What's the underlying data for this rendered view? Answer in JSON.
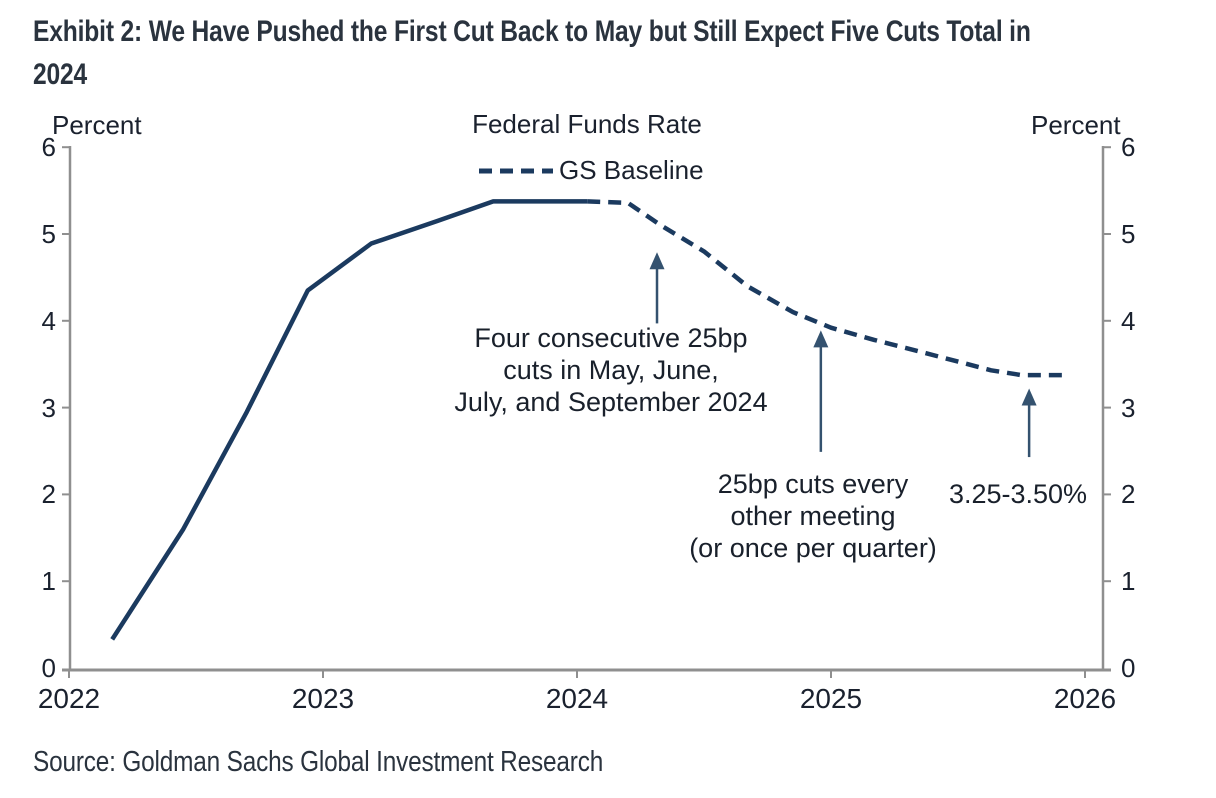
{
  "exhibit": {
    "title_line1": "Exhibit 2: We Have Pushed the First Cut Back to May but Still Expect Five Cuts Total in",
    "title_line2": "2024",
    "source": "Source: Goldman Sachs Global Investment Research"
  },
  "colors": {
    "series_line": "#1b3a5f",
    "arrow": "#34526f",
    "axis": "#8f8f8f",
    "chart_text": "#1a212e",
    "heading_text": "#2a333e"
  },
  "chart_data": {
    "type": "line",
    "title": "Federal Funds Rate",
    "y_axis_label_left": "Percent",
    "y_axis_label_right": "Percent",
    "xlim": [
      2022,
      2026.07
    ],
    "ylim": [
      0,
      6
    ],
    "x_ticks": [
      2022,
      2023,
      2024,
      2025,
      2026
    ],
    "y_ticks": [
      0,
      1,
      2,
      3,
      4,
      5,
      6
    ],
    "grid": false,
    "legend": [
      {
        "name": "GS Baseline",
        "style": "dashed"
      }
    ],
    "series": [
      {
        "name": "Federal Funds Rate (actual)",
        "style": "solid",
        "color": "#1b3a5f",
        "points": [
          [
            2022.17,
            0.33
          ],
          [
            2022.45,
            1.6
          ],
          [
            2022.7,
            2.95
          ],
          [
            2022.94,
            4.35
          ],
          [
            2023.19,
            4.89
          ],
          [
            2023.45,
            5.15
          ],
          [
            2023.67,
            5.375
          ],
          [
            2024.04,
            5.375
          ]
        ]
      },
      {
        "name": "GS Baseline",
        "style": "dashed",
        "color": "#1b3a5f",
        "points": [
          [
            2024.04,
            5.375
          ],
          [
            2024.2,
            5.36
          ],
          [
            2024.33,
            5.1
          ],
          [
            2024.5,
            4.8
          ],
          [
            2024.67,
            4.4
          ],
          [
            2024.85,
            4.1
          ],
          [
            2025.0,
            3.92
          ],
          [
            2025.17,
            3.78
          ],
          [
            2025.33,
            3.66
          ],
          [
            2025.5,
            3.53
          ],
          [
            2025.63,
            3.43
          ],
          [
            2025.75,
            3.375
          ],
          [
            2025.92,
            3.375
          ]
        ]
      }
    ],
    "annotations": [
      {
        "lines": [
          "Four consecutive 25bp",
          "cuts in May, June,",
          "July, and September 2024"
        ],
        "arrow": {
          "x": 2024.315,
          "tip_pct": 4.79,
          "base_pct": 3.97
        }
      },
      {
        "lines": [
          "25bp cuts every",
          "other meeting",
          "(or once per quarter)"
        ],
        "arrow": {
          "x": 2024.96,
          "tip_pct": 3.89,
          "base_pct": 2.49
        }
      },
      {
        "lines": [
          "3.25-3.50%"
        ],
        "arrow": {
          "x": 2025.78,
          "tip_pct": 3.22,
          "base_pct": 2.43
        }
      }
    ]
  }
}
